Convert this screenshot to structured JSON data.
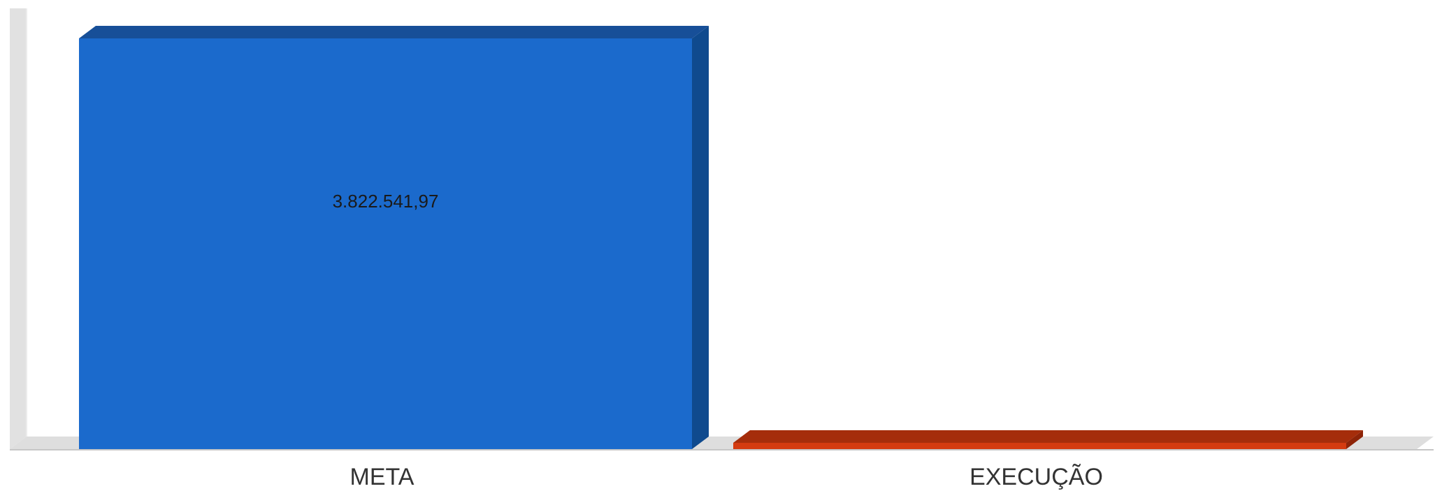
{
  "chart_data": {
    "type": "bar",
    "categories": [
      "META",
      "EXECUÇÃO"
    ],
    "values": [
      3822541.97,
      0
    ],
    "value_labels": [
      "3.822.541,97",
      ""
    ],
    "colors": [
      "#1b6acc",
      "#d43b10"
    ],
    "side_colors": [
      "#0f4a8e",
      "#8e2408"
    ],
    "top_colors": [
      "#174f98",
      "#a52d0b"
    ],
    "title": "",
    "xlabel": "",
    "ylabel": "",
    "ylim": [
      0,
      3822541.97
    ],
    "grid": false,
    "legend": "none",
    "style": "3d"
  }
}
